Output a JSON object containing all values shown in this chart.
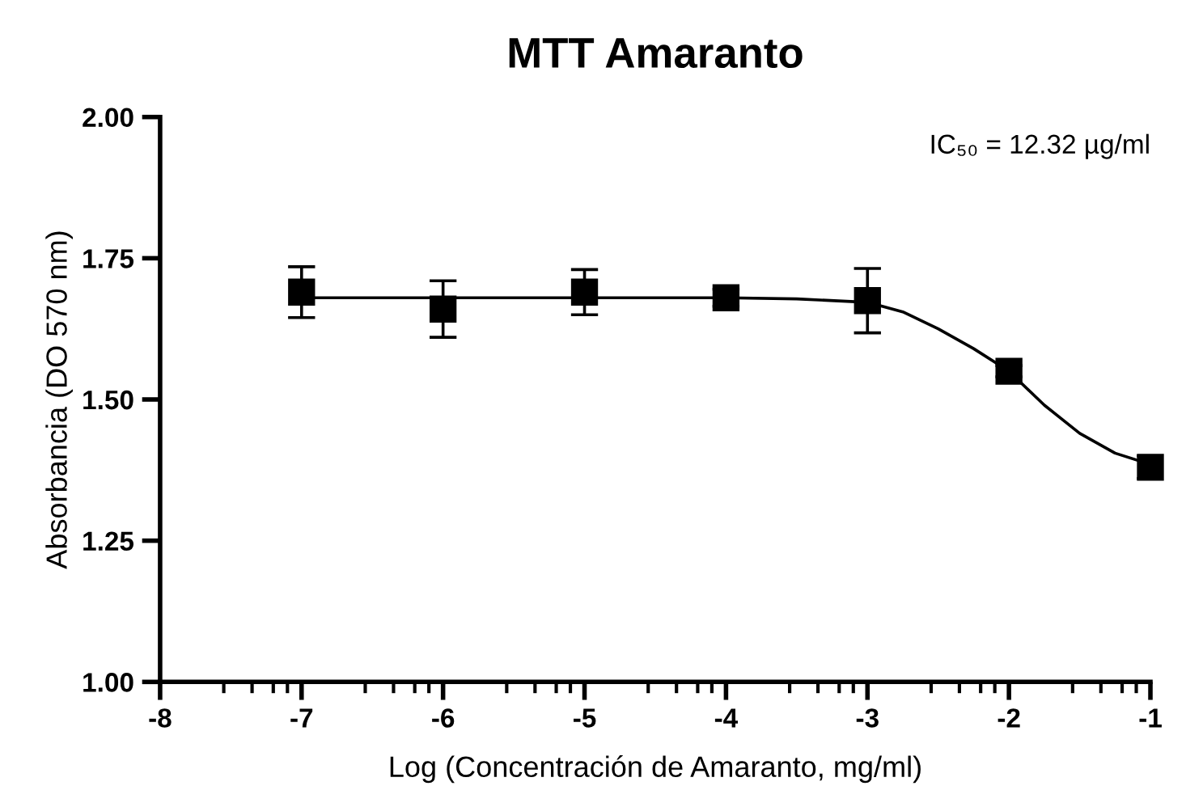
{
  "chart_data": {
    "type": "scatter",
    "title": "MTT Amaranto",
    "xlabel": "Log (Concentración de Amaranto, mg/ml)",
    "ylabel": "Absorbancia (DO 570 nm)",
    "annotations": [
      "IC₅₀ = 12.32 µg/ml"
    ],
    "xlim": [
      -8,
      -1
    ],
    "ylim": [
      1.0,
      2.0
    ],
    "xticks": [
      -8,
      -7,
      -6,
      -5,
      -4,
      -3,
      -2,
      -1,
      {
        "value": -7.55,
        "label": null
      },
      {
        "value": -7.35,
        "label": null
      },
      {
        "value": -7.2,
        "label": null
      },
      {
        "value": -7.1,
        "label": null
      },
      {
        "value": -6.55,
        "label": null
      },
      {
        "value": -6.35,
        "label": null
      },
      {
        "value": -6.2,
        "label": null
      },
      {
        "value": -6.1,
        "label": null
      },
      {
        "value": -5.55,
        "label": null
      },
      {
        "value": -5.35,
        "label": null
      },
      {
        "value": -5.2,
        "label": null
      },
      {
        "value": -5.1,
        "label": null
      },
      {
        "value": -4.55,
        "label": null
      },
      {
        "value": -4.35,
        "label": null
      },
      {
        "value": -4.2,
        "label": null
      },
      {
        "value": -4.1,
        "label": null
      },
      {
        "value": -3.55,
        "label": null
      },
      {
        "value": -3.35,
        "label": null
      },
      {
        "value": -3.2,
        "label": null
      },
      {
        "value": -3.1,
        "label": null
      },
      {
        "value": -2.55,
        "label": null
      },
      {
        "value": -2.35,
        "label": null
      },
      {
        "value": -2.2,
        "label": null
      },
      {
        "value": -2.1,
        "label": null
      },
      {
        "value": -1.55,
        "label": null
      },
      {
        "value": -1.35,
        "label": null
      },
      {
        "value": -1.2,
        "label": null
      },
      {
        "value": -1.1,
        "label": null
      }
    ],
    "yticks": [
      {
        "value": 1.0,
        "label": "1.00"
      },
      {
        "value": 1.25,
        "label": "1.25"
      },
      {
        "value": 1.5,
        "label": "1.50"
      },
      {
        "value": 1.75,
        "label": "1.75"
      },
      {
        "value": 2.0,
        "label": "2.00"
      }
    ],
    "grid": false,
    "legend": false,
    "marker": "square",
    "series": [
      {
        "color": "#000000",
        "x": [
          -7,
          -6,
          -5,
          -4,
          -3,
          -2,
          -1
        ],
        "values": [
          1.69,
          1.66,
          1.69,
          1.68,
          1.675,
          1.55,
          1.38
        ],
        "errors": [
          0.045,
          0.05,
          0.04,
          0.015,
          0.057,
          0.01,
          0.02
        ]
      },
      {
        "type": "line",
        "color": "#000000",
        "marker": "none",
        "x": [
          -7,
          -4,
          -3.5,
          -3,
          -2.75,
          -2.5,
          -2.25,
          -2,
          -1.75,
          -1.5,
          -1.25,
          -1
        ],
        "values": [
          1.68,
          1.68,
          1.678,
          1.672,
          1.655,
          1.625,
          1.59,
          1.55,
          1.49,
          1.44,
          1.405,
          1.385
        ]
      }
    ]
  }
}
